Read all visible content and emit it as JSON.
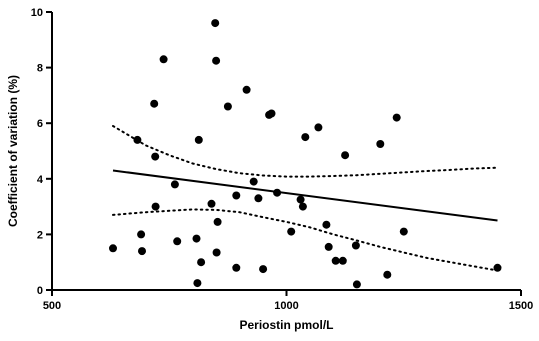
{
  "chart_data": {
    "type": "scatter",
    "xlabel": "Periostin pmol/L",
    "ylabel": "Coefficient of variation (%)",
    "xlim": [
      500,
      1500
    ],
    "ylim": [
      0,
      10
    ],
    "x_ticks": [
      500,
      1000,
      1500
    ],
    "y_ticks": [
      0,
      2,
      4,
      6,
      8,
      10
    ],
    "x_tick_labels": [
      "500",
      "1000",
      "1500"
    ],
    "y_tick_labels": [
      "0",
      "2",
      "4",
      "6",
      "8",
      "10"
    ],
    "grid": false,
    "colors": {
      "points": "#000000",
      "lines": "#000000"
    },
    "points": [
      [
        630,
        1.5
      ],
      [
        682,
        5.4
      ],
      [
        690,
        2.0
      ],
      [
        692,
        1.4
      ],
      [
        718,
        6.7
      ],
      [
        720,
        4.8
      ],
      [
        721,
        3.0
      ],
      [
        738,
        8.3
      ],
      [
        762,
        3.8
      ],
      [
        767,
        1.75
      ],
      [
        808,
        1.85
      ],
      [
        810,
        0.25
      ],
      [
        813,
        5.4
      ],
      [
        818,
        1.0
      ],
      [
        840,
        3.1
      ],
      [
        848,
        9.6
      ],
      [
        850,
        8.25
      ],
      [
        851,
        1.35
      ],
      [
        853,
        2.45
      ],
      [
        875,
        6.6
      ],
      [
        893,
        3.4
      ],
      [
        893,
        0.8
      ],
      [
        915,
        7.2
      ],
      [
        930,
        3.9
      ],
      [
        940,
        3.3
      ],
      [
        950,
        0.75
      ],
      [
        963,
        6.3
      ],
      [
        968,
        6.35
      ],
      [
        980,
        3.5
      ],
      [
        1010,
        2.1
      ],
      [
        1030,
        3.25
      ],
      [
        1035,
        3.0
      ],
      [
        1040,
        5.5
      ],
      [
        1068,
        5.85
      ],
      [
        1085,
        2.35
      ],
      [
        1090,
        1.55
      ],
      [
        1105,
        1.05
      ],
      [
        1120,
        1.05
      ],
      [
        1125,
        4.85
      ],
      [
        1148,
        1.6
      ],
      [
        1150,
        0.2
      ],
      [
        1200,
        5.25
      ],
      [
        1215,
        0.55
      ],
      [
        1235,
        6.2
      ],
      [
        1250,
        2.1
      ],
      [
        1450,
        0.8
      ]
    ],
    "regression_line": {
      "x": [
        630,
        1450
      ],
      "y": [
        4.3,
        2.5
      ]
    },
    "confidence_band_upper": {
      "x": [
        630,
        700,
        750,
        800,
        850,
        900,
        950,
        1000,
        1050,
        1100,
        1150,
        1200,
        1250,
        1300,
        1350,
        1400,
        1450
      ],
      "y": [
        5.9,
        5.2,
        4.85,
        4.55,
        4.35,
        4.2,
        4.12,
        4.08,
        4.08,
        4.1,
        4.13,
        4.18,
        4.23,
        4.28,
        4.32,
        4.37,
        4.4
      ]
    },
    "confidence_band_lower": {
      "x": [
        630,
        700,
        750,
        800,
        850,
        900,
        950,
        1000,
        1050,
        1100,
        1150,
        1200,
        1250,
        1300,
        1350,
        1400,
        1450
      ],
      "y": [
        2.7,
        2.8,
        2.85,
        2.9,
        2.88,
        2.8,
        2.62,
        2.45,
        2.25,
        2.0,
        1.78,
        1.55,
        1.35,
        1.15,
        1.0,
        0.85,
        0.7
      ]
    }
  }
}
